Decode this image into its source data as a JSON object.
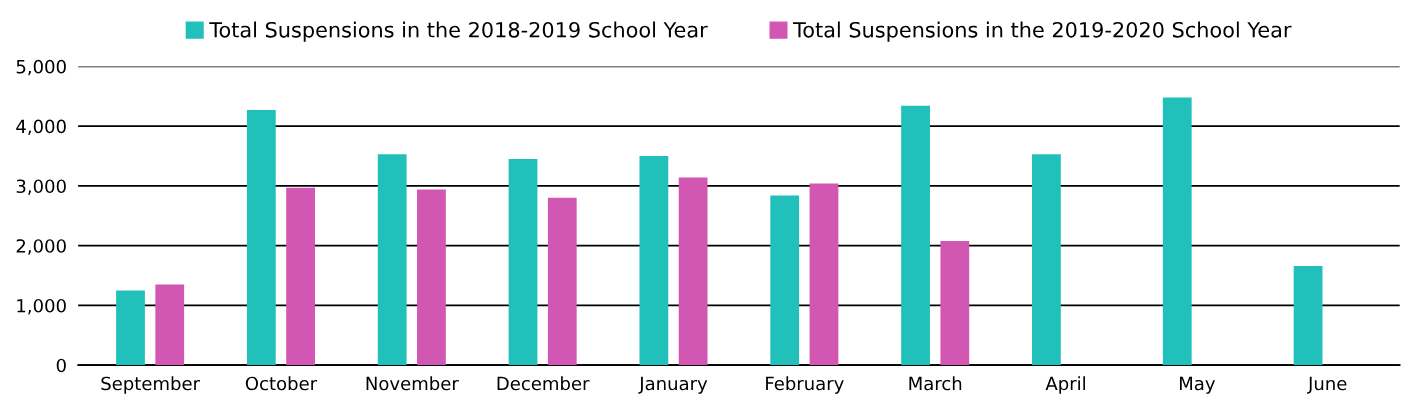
{
  "chart_data": {
    "type": "bar",
    "categories": [
      "September",
      "October",
      "November",
      "December",
      "January",
      "February",
      "March",
      "April",
      "May",
      "June"
    ],
    "series": [
      {
        "name": "Total Suspensions in the 2018-2019 School Year",
        "color": "#22c0bb",
        "values": [
          1250,
          4270,
          3530,
          3450,
          3500,
          2840,
          4340,
          3530,
          4480,
          1660
        ]
      },
      {
        "name": "Total Suspensions in the 2019-2020 School Year",
        "color": "#d257b3",
        "values": [
          1350,
          2970,
          2940,
          2800,
          3140,
          3040,
          2080,
          null,
          null,
          null
        ]
      }
    ],
    "ylim": [
      0,
      5000
    ],
    "yticks": [
      {
        "value": 0,
        "label": "0"
      },
      {
        "value": 1000,
        "label": "1,000"
      },
      {
        "value": 2000,
        "label": "2,000"
      },
      {
        "value": 3000,
        "label": "3,000"
      },
      {
        "value": 4000,
        "label": "4,000"
      },
      {
        "value": 5000,
        "label": "5,000"
      }
    ],
    "grid": "y",
    "legend": "top"
  }
}
